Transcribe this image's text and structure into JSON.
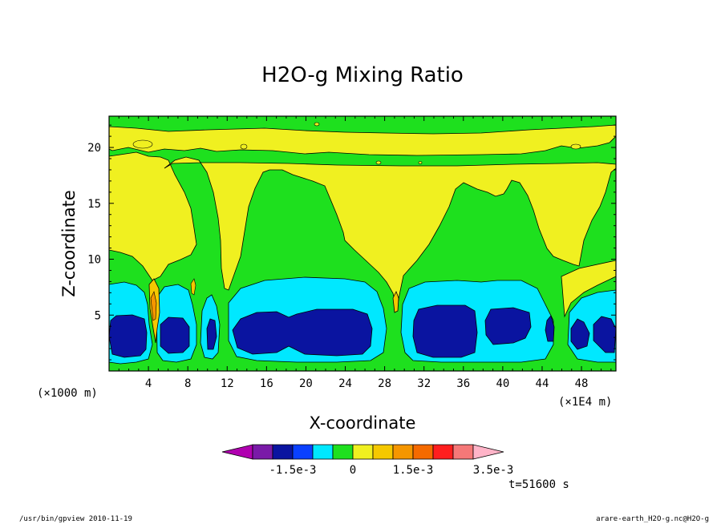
{
  "chart_data": {
    "type": "heatmap",
    "title": "H2O-g Mixing Ratio",
    "xlabel": "X-coordinate",
    "ylabel": "Z-coordinate",
    "x_unit": "(×1E4 m)",
    "y_unit": "(×1000 m)",
    "xlim": [
      0,
      51.5
    ],
    "ylim": [
      0,
      22.8
    ],
    "x_ticks": [
      4,
      8,
      12,
      16,
      20,
      24,
      28,
      32,
      36,
      40,
      44,
      48
    ],
    "y_ticks": [
      5,
      10,
      15,
      20
    ],
    "time_label": "t=51600 s",
    "colorbar": {
      "levels": [
        -0.0025,
        -0.002,
        -0.0015,
        -0.001,
        -0.0005,
        0,
        0.0005,
        0.001,
        0.0015,
        0.002,
        0.0025,
        0.003,
        0.0035
      ],
      "colors": [
        "#b000b0",
        "#7a1aa8",
        "#0a14a0",
        "#0a40ff",
        "#00e8ff",
        "#1ee01e",
        "#f0f020",
        "#f5c800",
        "#f59600",
        "#f56a00",
        "#ff1e1e",
        "#f57878",
        "#ffb4c8"
      ],
      "tick_labels": [
        "-1.5e-3",
        "0",
        "1.5e-3",
        "3.5e-3"
      ]
    }
  },
  "footer": {
    "left": "/usr/bin/gpview  2010-11-19",
    "right": "arare-earth_H2O-g.nc@H2O-g"
  }
}
